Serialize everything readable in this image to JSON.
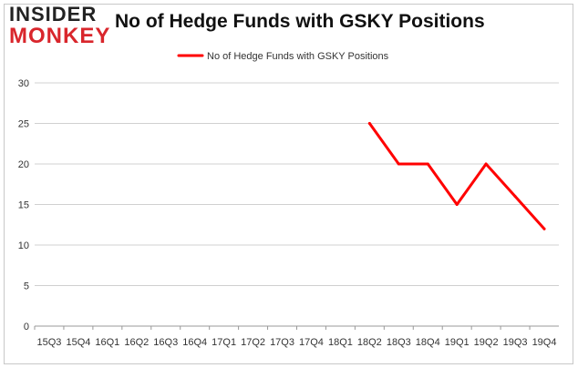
{
  "logo": {
    "line1": "INSIDER",
    "line2": "MONKEY"
  },
  "chart_data": {
    "type": "line",
    "title": "No of Hedge Funds with GSKY Positions",
    "xlabel": "",
    "ylabel": "",
    "categories": [
      "15Q3",
      "15Q4",
      "16Q1",
      "16Q2",
      "16Q3",
      "16Q4",
      "17Q1",
      "17Q2",
      "17Q3",
      "17Q4",
      "18Q1",
      "18Q2",
      "18Q3",
      "18Q4",
      "19Q1",
      "19Q2",
      "19Q3",
      "19Q4"
    ],
    "series": [
      {
        "name": "No of Hedge Funds with GSKY Positions",
        "values": [
          null,
          null,
          null,
          null,
          null,
          null,
          null,
          null,
          null,
          null,
          null,
          25,
          20,
          20,
          15,
          20,
          16,
          12
        ],
        "color": "#ff0000"
      }
    ],
    "ylim": [
      0,
      30
    ],
    "yticks": [
      "0",
      "5",
      "10",
      "15",
      "20",
      "25",
      "30"
    ],
    "grid": true,
    "legend_position": "top"
  }
}
